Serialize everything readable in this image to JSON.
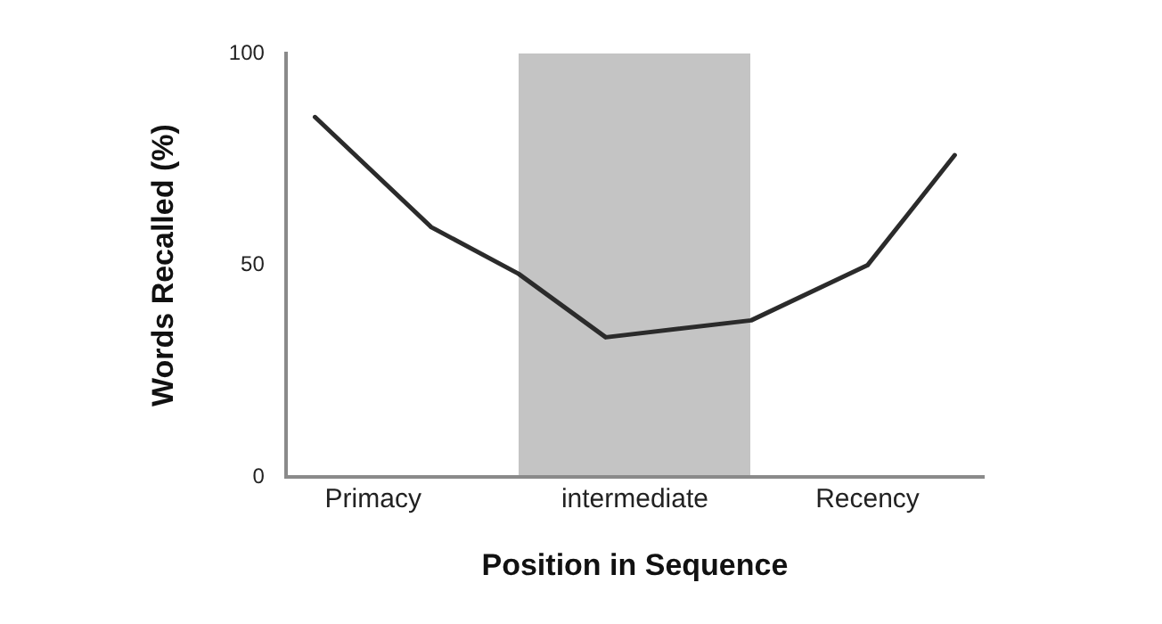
{
  "chart_data": {
    "type": "line",
    "xlabel": "Position in Sequence",
    "ylabel": "Words Recalled (%)",
    "categories": [
      null,
      null,
      null,
      "Primacy",
      null,
      null,
      null,
      null,
      null,
      null,
      null,
      null,
      "intermediate",
      null,
      null,
      null,
      null,
      null,
      null,
      null,
      "Recency",
      null,
      null,
      null,
      null
    ],
    "series": [
      {
        "color": "#2b2b2b",
        "values": [
          null,
          85,
          null,
          null,
          null,
          59,
          null,
          null,
          48,
          null,
          null,
          33,
          null,
          null,
          null,
          null,
          37,
          null,
          null,
          null,
          50,
          null,
          null,
          76,
          null
        ]
      }
    ],
    "ylim": [
      0,
      100
    ],
    "yticks": [
      0,
      50,
      100
    ],
    "grid": false,
    "legend": false,
    "marker": "none",
    "line_style": "solid"
  }
}
